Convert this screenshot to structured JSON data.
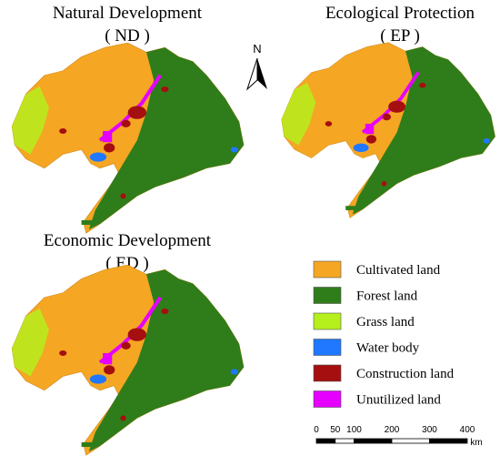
{
  "panels": [
    {
      "title": "Natural Development",
      "code": "( ND )"
    },
    {
      "title": "Ecological Protection",
      "code": "( EP )"
    },
    {
      "title": "Economic Development",
      "code": "( ED )"
    }
  ],
  "north_arrow": "N",
  "legend": [
    {
      "label": "Cultivated land",
      "color": "#f5a623"
    },
    {
      "label": "Forest land",
      "color": "#2f7d1a"
    },
    {
      "label": "Grass land",
      "color": "#b5ef1c"
    },
    {
      "label": "Water body",
      "color": "#1f78ff"
    },
    {
      "label": "Construction land",
      "color": "#a50f0f"
    },
    {
      "label": "Unutilized land",
      "color": "#e600ff"
    }
  ],
  "scale_bar": {
    "ticks": [
      0,
      50,
      100,
      200,
      300,
      400
    ],
    "unit": "km"
  }
}
